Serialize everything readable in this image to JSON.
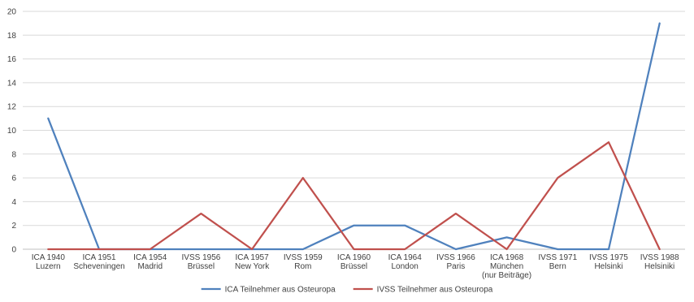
{
  "chart_data": {
    "type": "line",
    "title": "",
    "xlabel": "",
    "ylabel": "",
    "ylim": [
      0,
      20
    ],
    "yticks": [
      0,
      2,
      4,
      6,
      8,
      10,
      12,
      14,
      16,
      18,
      20
    ],
    "grid": true,
    "legend_position": "bottom",
    "categories": [
      [
        "ICA 1940",
        "Luzern"
      ],
      [
        "ICA 1951",
        "Scheveningen"
      ],
      [
        "ICA 1954",
        "Madrid"
      ],
      [
        "IVSS 1956",
        "Brüssel"
      ],
      [
        "ICA 1957",
        "New York"
      ],
      [
        "IVSS 1959",
        "Rom"
      ],
      [
        "ICA 1960",
        "Brüssel"
      ],
      [
        "ICA 1964",
        "London"
      ],
      [
        "IVSS 1966",
        "Paris"
      ],
      [
        "ICA 1968",
        "München",
        "(nur Beiträge)"
      ],
      [
        "IVSS 1971",
        "Bern"
      ],
      [
        "IVSS 1975",
        "Helsinki"
      ],
      [
        "IVSS 1988",
        "Helsiniki"
      ]
    ],
    "series": [
      {
        "name": "ICA Teilnehmer aus Osteuropa",
        "color": "#4F81BD",
        "values": [
          11,
          0,
          0,
          0,
          0,
          0,
          2,
          2,
          0,
          1,
          0,
          0,
          19
        ]
      },
      {
        "name": "IVSS Teilnehmer aus Osteuropa",
        "color": "#C0504D",
        "values": [
          0,
          0,
          0,
          3,
          0,
          6,
          0,
          0,
          3,
          0,
          6,
          9,
          0
        ]
      }
    ]
  }
}
